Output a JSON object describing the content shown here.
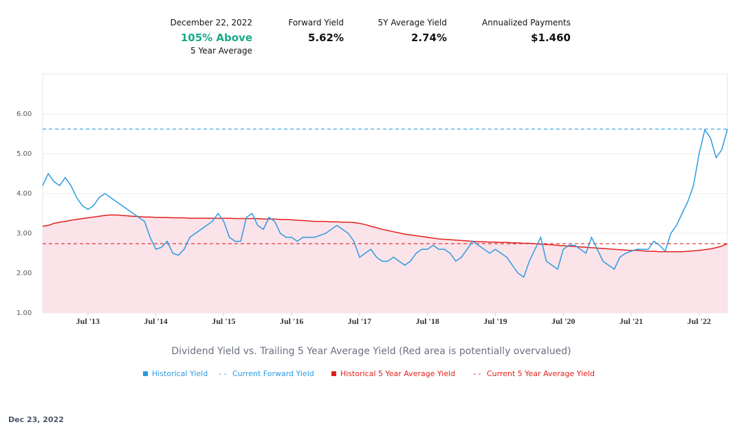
{
  "header": {
    "date": "December 22, 2022",
    "status": "105% Above",
    "status_note": "5 Year Average",
    "stats": [
      {
        "label": "Forward Yield",
        "value": "5.62%"
      },
      {
        "label": "5Y Average Yield",
        "value": "2.74%"
      },
      {
        "label": "Annualized Payments",
        "value": "$1.460"
      }
    ]
  },
  "chart_data": {
    "type": "line",
    "title": "Dividend Yield vs. Trailing 5 Year Average Yield (Red area is potentially overvalued)",
    "x": [
      "2012-11",
      "2012-12",
      "2013-01",
      "2013-02",
      "2013-03",
      "2013-04",
      "2013-05",
      "2013-06",
      "2013-07",
      "2013-08",
      "2013-09",
      "2013-10",
      "2013-11",
      "2013-12",
      "2014-01",
      "2014-02",
      "2014-03",
      "2014-04",
      "2014-05",
      "2014-06",
      "2014-07",
      "2014-08",
      "2014-09",
      "2014-10",
      "2014-11",
      "2014-12",
      "2015-01",
      "2015-02",
      "2015-03",
      "2015-04",
      "2015-05",
      "2015-06",
      "2015-07",
      "2015-08",
      "2015-09",
      "2015-10",
      "2015-11",
      "2015-12",
      "2016-01",
      "2016-02",
      "2016-03",
      "2016-04",
      "2016-05",
      "2016-06",
      "2016-07",
      "2016-08",
      "2016-09",
      "2016-10",
      "2016-11",
      "2016-12",
      "2017-01",
      "2017-02",
      "2017-03",
      "2017-04",
      "2017-05",
      "2017-06",
      "2017-07",
      "2017-08",
      "2017-09",
      "2017-10",
      "2017-11",
      "2017-12",
      "2018-01",
      "2018-02",
      "2018-03",
      "2018-04",
      "2018-05",
      "2018-06",
      "2018-07",
      "2018-08",
      "2018-09",
      "2018-10",
      "2018-11",
      "2018-12",
      "2019-01",
      "2019-02",
      "2019-03",
      "2019-04",
      "2019-05",
      "2019-06",
      "2019-07",
      "2019-08",
      "2019-09",
      "2019-10",
      "2019-11",
      "2019-12",
      "2020-01",
      "2020-02",
      "2020-03",
      "2020-04",
      "2020-05",
      "2020-06",
      "2020-07",
      "2020-08",
      "2020-09",
      "2020-10",
      "2020-11",
      "2020-12",
      "2021-01",
      "2021-02",
      "2021-03",
      "2021-04",
      "2021-05",
      "2021-06",
      "2021-07",
      "2021-08",
      "2021-09",
      "2021-10",
      "2021-11",
      "2021-12",
      "2022-01",
      "2022-02",
      "2022-03",
      "2022-04",
      "2022-05",
      "2022-06",
      "2022-07",
      "2022-08",
      "2022-09",
      "2022-10",
      "2022-11",
      "2022-12"
    ],
    "series": [
      {
        "name": "Historical Yield",
        "color": "#2b9be0",
        "values": [
          4.2,
          4.5,
          4.3,
          4.2,
          4.4,
          4.2,
          3.9,
          3.7,
          3.6,
          3.7,
          3.9,
          4.0,
          3.9,
          3.8,
          3.7,
          3.6,
          3.5,
          3.4,
          3.3,
          2.9,
          2.6,
          2.65,
          2.8,
          2.5,
          2.45,
          2.6,
          2.9,
          3.0,
          3.1,
          3.2,
          3.3,
          3.5,
          3.3,
          2.9,
          2.8,
          2.8,
          3.4,
          3.5,
          3.2,
          3.1,
          3.4,
          3.3,
          3.0,
          2.9,
          2.9,
          2.8,
          2.9,
          2.9,
          2.9,
          2.95,
          3.0,
          3.1,
          3.2,
          3.1,
          3.0,
          2.8,
          2.4,
          2.5,
          2.6,
          2.4,
          2.3,
          2.3,
          2.4,
          2.3,
          2.2,
          2.3,
          2.5,
          2.6,
          2.6,
          2.7,
          2.6,
          2.6,
          2.5,
          2.3,
          2.4,
          2.6,
          2.8,
          2.7,
          2.6,
          2.5,
          2.6,
          2.5,
          2.4,
          2.2,
          2.0,
          1.9,
          2.3,
          2.6,
          2.9,
          2.3,
          2.2,
          2.1,
          2.6,
          2.7,
          2.7,
          2.6,
          2.5,
          2.9,
          2.6,
          2.3,
          2.2,
          2.1,
          2.4,
          2.5,
          2.55,
          2.6,
          2.6,
          2.6,
          2.8,
          2.7,
          2.55,
          3.0,
          3.2,
          3.5,
          3.8,
          4.2,
          5.0,
          5.6,
          5.4,
          4.9,
          5.1,
          5.62
        ]
      },
      {
        "name": "Historical 5 Year Average Yield",
        "color": "#e0201c",
        "area": true,
        "area_color": "#fbe3ea",
        "values": [
          3.18,
          3.2,
          3.25,
          3.28,
          3.3,
          3.33,
          3.35,
          3.37,
          3.39,
          3.41,
          3.43,
          3.45,
          3.46,
          3.46,
          3.45,
          3.44,
          3.43,
          3.42,
          3.41,
          3.41,
          3.4,
          3.4,
          3.4,
          3.39,
          3.39,
          3.39,
          3.38,
          3.38,
          3.38,
          3.38,
          3.38,
          3.38,
          3.38,
          3.38,
          3.37,
          3.37,
          3.37,
          3.37,
          3.37,
          3.36,
          3.36,
          3.36,
          3.35,
          3.35,
          3.34,
          3.33,
          3.32,
          3.31,
          3.3,
          3.3,
          3.3,
          3.29,
          3.29,
          3.28,
          3.28,
          3.27,
          3.25,
          3.22,
          3.18,
          3.14,
          3.1,
          3.07,
          3.04,
          3.01,
          2.98,
          2.96,
          2.94,
          2.92,
          2.9,
          2.88,
          2.86,
          2.85,
          2.84,
          2.83,
          2.82,
          2.81,
          2.8,
          2.79,
          2.79,
          2.78,
          2.78,
          2.77,
          2.77,
          2.76,
          2.76,
          2.75,
          2.75,
          2.74,
          2.73,
          2.72,
          2.71,
          2.7,
          2.69,
          2.68,
          2.67,
          2.66,
          2.65,
          2.64,
          2.63,
          2.62,
          2.61,
          2.6,
          2.59,
          2.58,
          2.57,
          2.57,
          2.56,
          2.55,
          2.55,
          2.54,
          2.54,
          2.54,
          2.54,
          2.54,
          2.55,
          2.56,
          2.57,
          2.59,
          2.61,
          2.64,
          2.68,
          2.74
        ]
      }
    ],
    "reference_lines": [
      {
        "name": "Current Forward Yield",
        "value": 5.62,
        "color": "#2b9be0"
      },
      {
        "name": "Current 5 Year Average Yield",
        "value": 2.74,
        "color": "#e0201c"
      }
    ],
    "xlim": [
      "2012-11",
      "2022-12"
    ],
    "xticks": [
      {
        "value": "2013-07",
        "label": "Jul '13"
      },
      {
        "value": "2014-07",
        "label": "Jul '14"
      },
      {
        "value": "2015-07",
        "label": "Jul '15"
      },
      {
        "value": "2016-07",
        "label": "Jul '16"
      },
      {
        "value": "2017-07",
        "label": "Jul '17"
      },
      {
        "value": "2018-07",
        "label": "Jul '18"
      },
      {
        "value": "2019-07",
        "label": "Jul '19"
      },
      {
        "value": "2020-07",
        "label": "Jul '20"
      },
      {
        "value": "2021-07",
        "label": "Jul '21"
      },
      {
        "value": "2022-07",
        "label": "Jul '22"
      }
    ],
    "ylim": [
      1,
      7
    ],
    "yticks": [
      {
        "value": 1,
        "label": "1.00"
      },
      {
        "value": 2,
        "label": "2.00"
      },
      {
        "value": 3,
        "label": "3.00"
      },
      {
        "value": 4,
        "label": "4.00"
      },
      {
        "value": 5,
        "label": "5.00"
      },
      {
        "value": 6,
        "label": "6.00"
      }
    ],
    "grid": true
  },
  "footer": {
    "date": "Dec 23, 2022"
  }
}
